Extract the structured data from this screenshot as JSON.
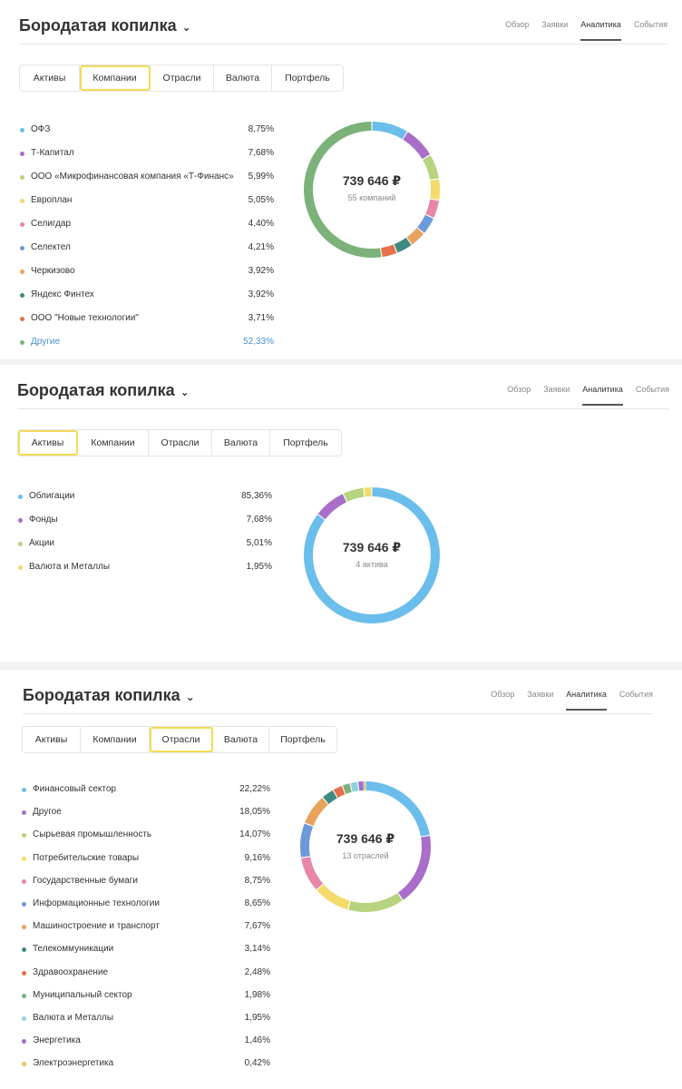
{
  "panels": [
    {
      "title": "Бородатая копилка",
      "nav": [
        "Обзор",
        "Заявки",
        "Аналитика",
        "События"
      ],
      "active_nav": 2,
      "tabs": [
        "Активы",
        "Компании",
        "Отрасли",
        "Валюта",
        "Портфель"
      ],
      "active_tab": 1,
      "total": "739 646 ₽",
      "subtitle": "55 компаний",
      "items": [
        {
          "label": "ОФЗ",
          "value": "8,75%",
          "color": "#6bbdeb"
        },
        {
          "label": "Т-Капитал",
          "value": "7,68%",
          "color": "#a86ec9"
        },
        {
          "label": "ООО «Микрофинансовая компания «Т-Финанс»",
          "value": "5,99%",
          "color": "#b7d37f"
        },
        {
          "label": "Европлан",
          "value": "5,05%",
          "color": "#f4d96b"
        },
        {
          "label": "Селигдар",
          "value": "4,40%",
          "color": "#e886a9"
        },
        {
          "label": "Селектел",
          "value": "4,21%",
          "color": "#6c9ad8"
        },
        {
          "label": "Черкизово",
          "value": "3,92%",
          "color": "#e9a25c"
        },
        {
          "label": "Яндекс Финтех",
          "value": "3,92%",
          "color": "#3f8a83"
        },
        {
          "label": "ООО \"Новые технологии\"",
          "value": "3,71%",
          "color": "#e5704b"
        },
        {
          "label": "Другие",
          "value": "52,33%",
          "color": "#7cb27a"
        }
      ],
      "slices": [
        8.75,
        7.68,
        5.99,
        5.05,
        4.4,
        4.21,
        3.92,
        3.92,
        3.71,
        52.33
      ]
    },
    {
      "title": "Бородатая копилка",
      "nav": [
        "Обзор",
        "Заявки",
        "Аналитика",
        "События"
      ],
      "active_nav": 2,
      "tabs": [
        "Активы",
        "Компании",
        "Отрасли",
        "Валюта",
        "Портфель"
      ],
      "active_tab": 0,
      "total": "739 646 ₽",
      "subtitle": "4 актива",
      "items": [
        {
          "label": "Облигации",
          "value": "85,36%",
          "color": "#6bbdeb"
        },
        {
          "label": "Фонды",
          "value": "7,68%",
          "color": "#a86ec9"
        },
        {
          "label": "Акции",
          "value": "5,01%",
          "color": "#b7d37f"
        },
        {
          "label": "Валюта и Металлы",
          "value": "1,95%",
          "color": "#f4d96b"
        }
      ],
      "slices": [
        85.36,
        7.68,
        5.01,
        1.95
      ]
    },
    {
      "title": "Бородатая копилка",
      "nav": [
        "Обзор",
        "Заявки",
        "Аналитика",
        "События"
      ],
      "active_nav": 2,
      "tabs": [
        "Активы",
        "Компании",
        "Отрасли",
        "Валюта",
        "Портфель"
      ],
      "active_tab": 2,
      "total": "739 646 ₽",
      "subtitle": "13 отраслей",
      "items": [
        {
          "label": "Финансовый сектор",
          "value": "22,22%",
          "color": "#6bbdeb"
        },
        {
          "label": "Другое",
          "value": "18,05%",
          "color": "#a86ec9"
        },
        {
          "label": "Сырьевая промышленность",
          "value": "14,07%",
          "color": "#b7d37f"
        },
        {
          "label": "Потребительские товары",
          "value": "9,16%",
          "color": "#f4d96b"
        },
        {
          "label": "Государственные бумаги",
          "value": "8,75%",
          "color": "#e886a9"
        },
        {
          "label": "Информационные технологии",
          "value": "8,65%",
          "color": "#6c9ad8"
        },
        {
          "label": "Машиностроение и транспорт",
          "value": "7,67%",
          "color": "#e9a25c"
        },
        {
          "label": "Телекоммуникации",
          "value": "3,14%",
          "color": "#3f8a83"
        },
        {
          "label": "Здравоохранение",
          "value": "2,48%",
          "color": "#e5704b"
        },
        {
          "label": "Муниципальный сектор",
          "value": "1,98%",
          "color": "#7cb27a"
        },
        {
          "label": "Валюта и Металлы",
          "value": "1,95%",
          "color": "#8ed1e0"
        },
        {
          "label": "Энергетика",
          "value": "1,46%",
          "color": "#9a6fd0"
        },
        {
          "label": "Электроэнергетика",
          "value": "0,42%",
          "color": "#f0c05a"
        }
      ],
      "slices": [
        22.22,
        18.05,
        14.07,
        9.16,
        8.75,
        8.65,
        7.67,
        3.14,
        2.48,
        1.98,
        1.95,
        1.46,
        0.42
      ]
    }
  ]
}
